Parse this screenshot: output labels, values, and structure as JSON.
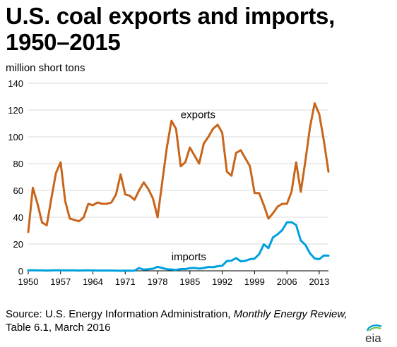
{
  "title": "U.S. coal exports and imports, 1950–2015",
  "unit_label": "million short tons",
  "source": {
    "prefix": "Source: U.S. Energy Information Administration, ",
    "publication": "Monthly Energy Review,",
    "suffix": "Table 6.1, March 2016"
  },
  "logo_text": "eia",
  "colors": {
    "exports": "#c8651b",
    "imports": "#00a0dd",
    "grid": "#d9d9d9",
    "axis": "#000000"
  },
  "chart_data": {
    "type": "line",
    "title": "U.S. coal exports and imports, 1950–2015",
    "ylabel": "million short tons",
    "xlabel": "",
    "xlim": [
      1950,
      2015
    ],
    "ylim": [
      0,
      140
    ],
    "x_ticks": [
      1950,
      1957,
      1964,
      1971,
      1978,
      1985,
      1992,
      1999,
      2006,
      2013
    ],
    "y_ticks": [
      0,
      20,
      40,
      60,
      80,
      100,
      120,
      140
    ],
    "grid": true,
    "x": [
      1950,
      1951,
      1952,
      1953,
      1954,
      1955,
      1956,
      1957,
      1958,
      1959,
      1960,
      1961,
      1962,
      1963,
      1964,
      1965,
      1966,
      1967,
      1968,
      1969,
      1970,
      1971,
      1972,
      1973,
      1974,
      1975,
      1976,
      1977,
      1978,
      1979,
      1980,
      1981,
      1982,
      1983,
      1984,
      1985,
      1986,
      1987,
      1988,
      1989,
      1990,
      1991,
      1992,
      1993,
      1994,
      1995,
      1996,
      1997,
      1998,
      1999,
      2000,
      2001,
      2002,
      2003,
      2004,
      2005,
      2006,
      2007,
      2008,
      2009,
      2010,
      2011,
      2012,
      2013,
      2014,
      2015
    ],
    "series": [
      {
        "name": "exports",
        "values": [
          29,
          62,
          50,
          36,
          34,
          54,
          73,
          81,
          52,
          39,
          38,
          37,
          40,
          50,
          49,
          51,
          50,
          50,
          51,
          57,
          72,
          57,
          56,
          53,
          60,
          66,
          61,
          54,
          40,
          66,
          92,
          112,
          106,
          78,
          81,
          92,
          86,
          80,
          95,
          100,
          106,
          109,
          103,
          74,
          71,
          88,
          90,
          84,
          78,
          58,
          58,
          49,
          39,
          43,
          48,
          50,
          50,
          59,
          81,
          59,
          82,
          107,
          125,
          117,
          97,
          74
        ]
      },
      {
        "name": "imports",
        "values": [
          0.4,
          0.4,
          0.3,
          0.3,
          0.2,
          0.3,
          0.4,
          0.4,
          0.3,
          0.3,
          0.3,
          0.2,
          0.3,
          0.3,
          0.3,
          0.2,
          0.2,
          0.2,
          0.2,
          0.1,
          0.04,
          0.1,
          0.05,
          0.1,
          2.1,
          0.9,
          1.2,
          1.6,
          3.0,
          2.1,
          1.2,
          1.0,
          0.7,
          1.3,
          1.3,
          2.0,
          2.2,
          1.7,
          2.1,
          2.9,
          2.7,
          3.4,
          3.8,
          7.3,
          7.6,
          9.5,
          7.1,
          7.5,
          8.7,
          9.1,
          12.5,
          19.8,
          16.9,
          25.0,
          27.3,
          30.5,
          36.2,
          36.3,
          34.2,
          22.6,
          19.4,
          13.1,
          9.2,
          8.7,
          11.4,
          11.3
        ]
      }
    ],
    "annotations": [
      {
        "text": "exports",
        "x": 1983,
        "y": 114
      },
      {
        "text": "imports",
        "x": 1981,
        "y": 8
      }
    ]
  }
}
